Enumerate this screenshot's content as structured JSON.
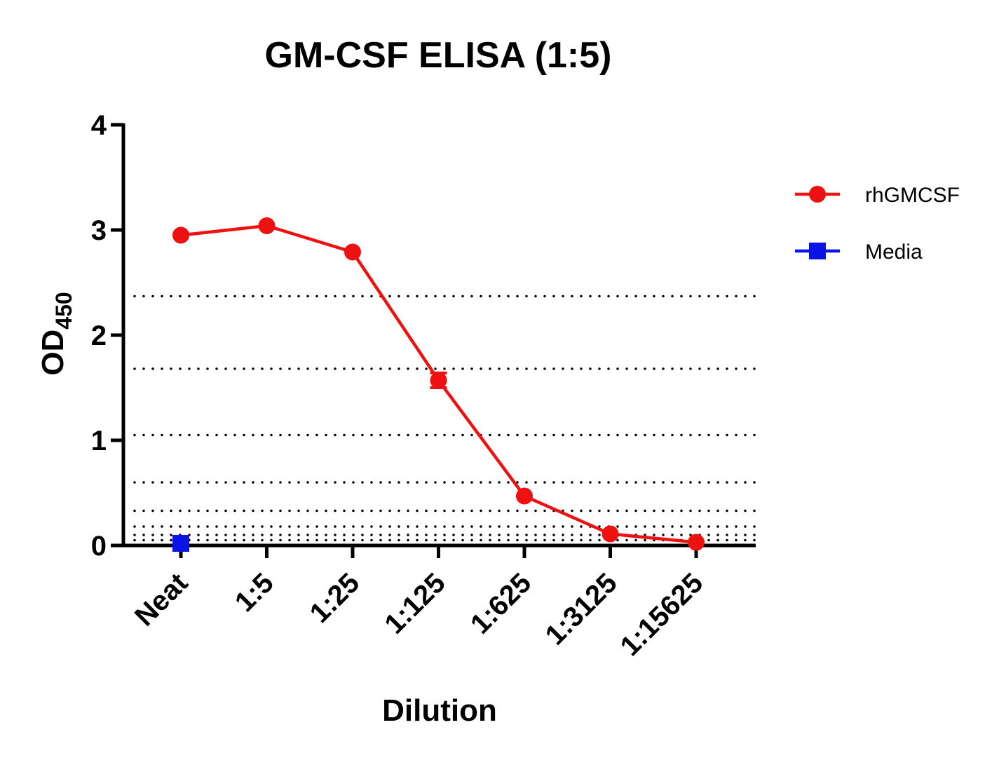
{
  "chart_data": {
    "type": "line",
    "title": "GM-CSF ELISA (1:5)",
    "xlabel": "Dilution",
    "ylabel_main": "OD",
    "ylabel_sub": "450",
    "categories": [
      "Neat",
      "1:5",
      "1:25",
      "1:125",
      "1:625",
      "1:3125",
      "1:15625"
    ],
    "ylim": [
      0,
      4
    ],
    "yticks": [
      0,
      1,
      2,
      3,
      4
    ],
    "reference_lines": [
      2.37,
      1.68,
      1.05,
      0.6,
      0.33,
      0.18,
      0.1,
      0.05
    ],
    "series": [
      {
        "name": "rhGMCSF",
        "color": "#ee1111",
        "marker": "circle",
        "values": [
          2.95,
          3.04,
          2.79,
          1.57,
          0.47,
          0.11,
          0.03
        ],
        "error": [
          0,
          0,
          0,
          0.07,
          0,
          0,
          0
        ]
      },
      {
        "name": "Media",
        "color": "#0b14e6",
        "marker": "square",
        "values": [
          0.02,
          null,
          null,
          null,
          null,
          null,
          null
        ]
      }
    ],
    "legend_position": "right",
    "grid": false
  }
}
